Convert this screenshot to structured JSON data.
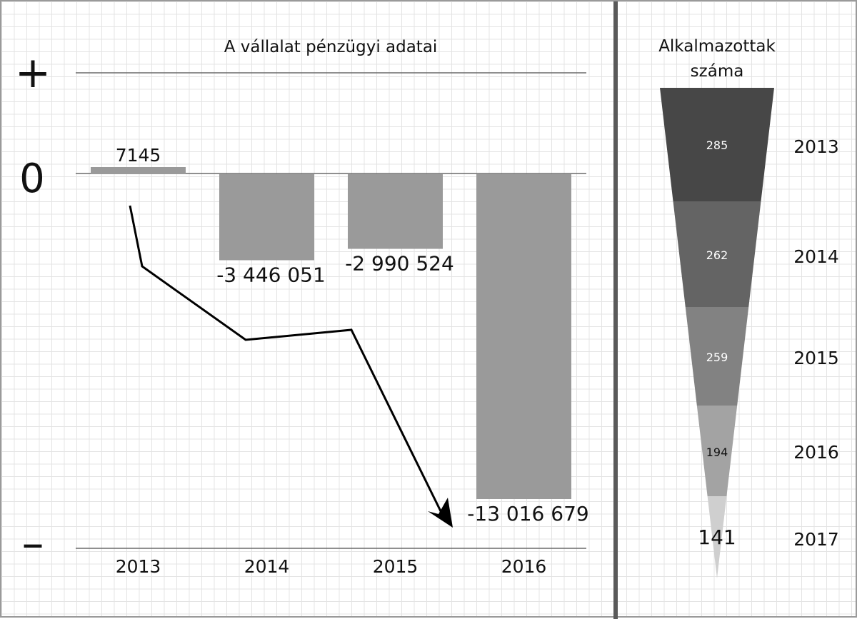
{
  "chart_data": [
    {
      "type": "bar",
      "title": "A vállalat pénzügyi adatai",
      "categories": [
        "2013",
        "2014",
        "2015",
        "2016"
      ],
      "values": [
        7145,
        -3446051,
        -2990524,
        -13016679
      ],
      "data_labels": [
        "7145",
        "-3 446 051",
        "-2 990 524",
        "-13 016 679"
      ],
      "axis_markers": {
        "plus": "+",
        "zero": "0",
        "minus": "–"
      },
      "bar_color": "#9a9a9a",
      "trend_arrow": true
    },
    {
      "type": "funnel",
      "title_lines": [
        "Alkalmazottak",
        "száma"
      ],
      "categories": [
        "2013",
        "2014",
        "2015",
        "2016",
        "2017"
      ],
      "values": [
        285,
        262,
        259,
        194,
        141
      ],
      "labels": [
        "285",
        "262",
        "259",
        "194",
        "141"
      ],
      "colors": [
        "#474747",
        "#646464",
        "#828282",
        "#a3a3a3",
        "#cfcfcf"
      ]
    }
  ]
}
